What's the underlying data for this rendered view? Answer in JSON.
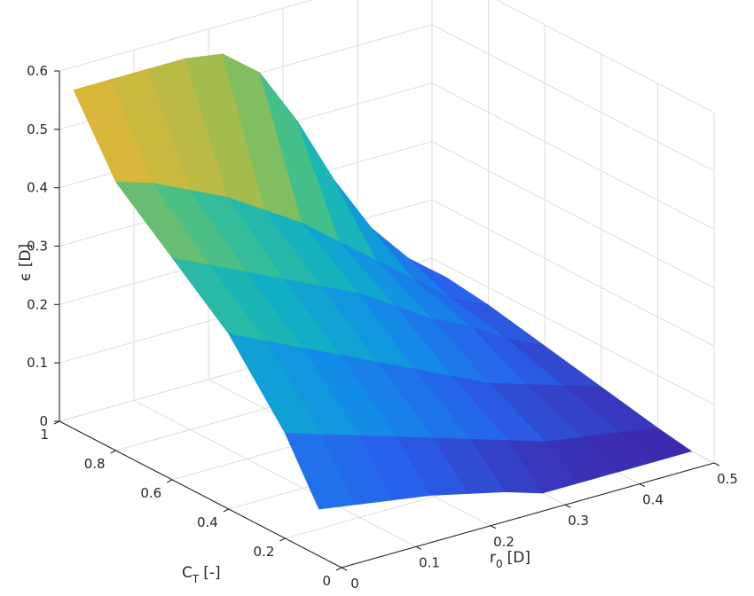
{
  "chart_data": {
    "type": "surface",
    "title": "",
    "axes": {
      "x": {
        "label_main": "r",
        "label_sub": "0",
        "label_unit": "[D]",
        "range": [
          0,
          0.5
        ],
        "ticks": [
          "0",
          "0.1",
          "0.2",
          "0.3",
          "0.4",
          "0.5"
        ]
      },
      "y": {
        "label_main": "C",
        "label_sub": "T",
        "label_unit": "[-]",
        "range": [
          0,
          1
        ],
        "ticks": [
          "0",
          "0.2",
          "0.4",
          "0.6",
          "0.8",
          "1"
        ]
      },
      "z": {
        "label": "ϵ [D]",
        "range": [
          0,
          0.6
        ],
        "ticks": [
          "0",
          "0.1",
          "0.2",
          "0.3",
          "0.4",
          "0.5",
          "0.6"
        ]
      }
    },
    "grid": true,
    "colormap": "parula",
    "color_range": [
      0,
      0.6
    ],
    "surface": {
      "r0": [
        0,
        0.05,
        0.1,
        0.15,
        0.2,
        0.25,
        0.3,
        0.35,
        0.4,
        0.45,
        0.5
      ],
      "CT": [
        0.08,
        0.2,
        0.4,
        0.6,
        0.8,
        0.95
      ],
      "epsilon": [
        [
          0.08,
          0.07,
          0.06,
          0.05,
          0.035,
          0.02,
          0.0,
          0.0,
          0.0,
          0.0,
          0.0
        ],
        [
          0.18,
          0.16,
          0.14,
          0.12,
          0.1,
          0.08,
          0.06,
          0.04,
          0.03,
          0.02,
          0.01
        ],
        [
          0.3,
          0.27,
          0.24,
          0.21,
          0.18,
          0.15,
          0.12,
          0.09,
          0.07,
          0.05,
          0.03
        ],
        [
          0.38,
          0.35,
          0.32,
          0.29,
          0.26,
          0.23,
          0.19,
          0.15,
          0.12,
          0.08,
          0.05
        ],
        [
          0.46,
          0.44,
          0.41,
          0.38,
          0.34,
          0.3,
          0.25,
          0.2,
          0.15,
          0.1,
          0.07
        ],
        [
          0.58,
          0.58,
          0.58,
          0.58,
          0.57,
          0.52,
          0.42,
          0.3,
          0.2,
          0.13,
          0.08
        ]
      ]
    }
  }
}
